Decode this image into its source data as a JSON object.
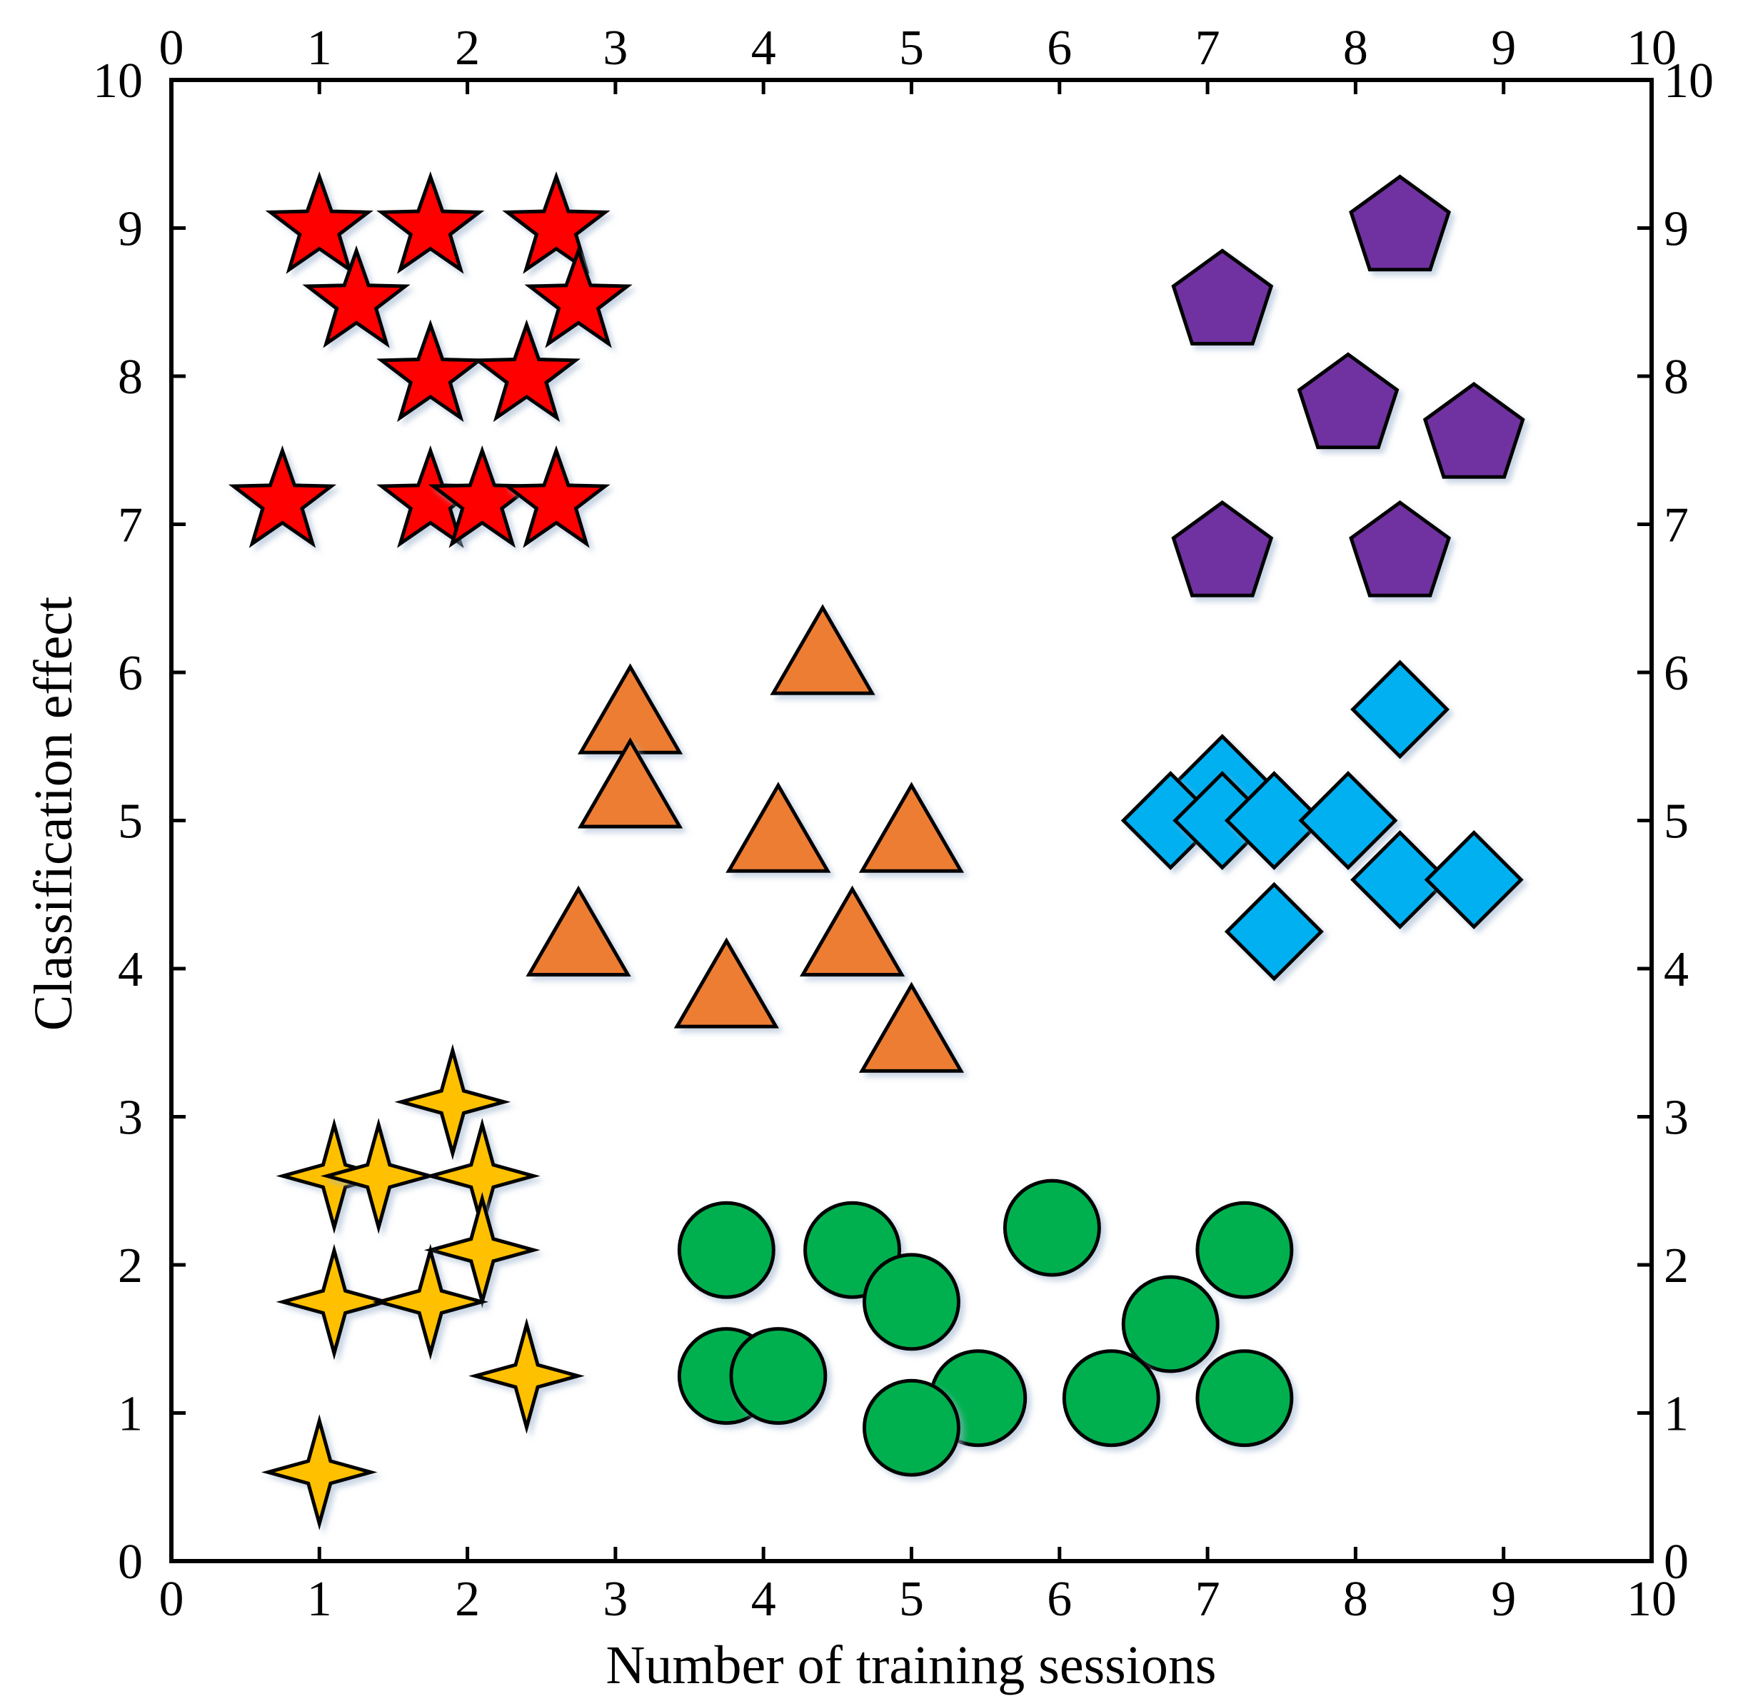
{
  "chart_data": {
    "type": "scatter",
    "xlabel": "Number of training sessions",
    "ylabel": "Classification effect",
    "xlim": [
      0,
      10
    ],
    "ylim": [
      0,
      10
    ],
    "xticks": [
      "0",
      "1",
      "2",
      "3",
      "4",
      "5",
      "6",
      "7",
      "8",
      "9",
      "10"
    ],
    "yticks": [
      "0",
      "1",
      "2",
      "3",
      "4",
      "5",
      "6",
      "7",
      "8",
      "9",
      "10"
    ],
    "grid": false,
    "ticks_on_all_sides": true,
    "series": [
      {
        "marker": "star5",
        "color": "#ff0000",
        "points": [
          [
            1.0,
            9.0
          ],
          [
            1.75,
            9.0
          ],
          [
            2.6,
            9.0
          ],
          [
            1.25,
            8.5
          ],
          [
            2.75,
            8.5
          ],
          [
            1.75,
            8.0
          ],
          [
            2.4,
            8.0
          ],
          [
            0.75,
            7.15
          ],
          [
            1.75,
            7.15
          ],
          [
            2.1,
            7.15
          ],
          [
            2.6,
            7.15
          ]
        ]
      },
      {
        "marker": "pentagon",
        "color": "#7030a0",
        "points": [
          [
            8.3,
            9.0
          ],
          [
            7.1,
            8.5
          ],
          [
            7.95,
            7.8
          ],
          [
            8.8,
            7.6
          ],
          [
            7.1,
            6.8
          ],
          [
            8.3,
            6.8
          ]
        ]
      },
      {
        "marker": "triangle",
        "color": "#ed7d31",
        "points": [
          [
            4.4,
            6.1
          ],
          [
            3.1,
            5.7
          ],
          [
            3.1,
            5.2
          ],
          [
            4.1,
            4.9
          ],
          [
            5.0,
            4.9
          ],
          [
            2.75,
            4.2
          ],
          [
            4.6,
            4.2
          ],
          [
            3.75,
            3.85
          ],
          [
            5.0,
            3.55
          ]
        ]
      },
      {
        "marker": "diamond",
        "color": "#00b0f0",
        "points": [
          [
            8.3,
            5.75
          ],
          [
            7.1,
            5.25
          ],
          [
            6.75,
            5.0
          ],
          [
            7.1,
            5.0
          ],
          [
            7.45,
            5.0
          ],
          [
            7.95,
            5.0
          ],
          [
            8.3,
            4.6
          ],
          [
            8.8,
            4.6
          ],
          [
            7.45,
            4.25
          ]
        ]
      },
      {
        "marker": "star4",
        "color": "#ffc000",
        "points": [
          [
            1.9,
            3.1
          ],
          [
            1.1,
            2.6
          ],
          [
            1.4,
            2.6
          ],
          [
            2.1,
            2.6
          ],
          [
            2.1,
            2.1
          ],
          [
            1.1,
            1.75
          ],
          [
            1.75,
            1.75
          ],
          [
            2.4,
            1.25
          ],
          [
            1.0,
            0.6
          ]
        ]
      },
      {
        "marker": "circle",
        "color": "#00b050",
        "points": [
          [
            5.95,
            2.25
          ],
          [
            3.75,
            2.1
          ],
          [
            4.6,
            2.1
          ],
          [
            7.25,
            2.1
          ],
          [
            5.0,
            1.75
          ],
          [
            6.75,
            1.6
          ],
          [
            3.75,
            1.25
          ],
          [
            4.1,
            1.25
          ],
          [
            5.45,
            1.1
          ],
          [
            6.35,
            1.1
          ],
          [
            7.25,
            1.1
          ],
          [
            5.0,
            0.9
          ]
        ]
      }
    ]
  }
}
